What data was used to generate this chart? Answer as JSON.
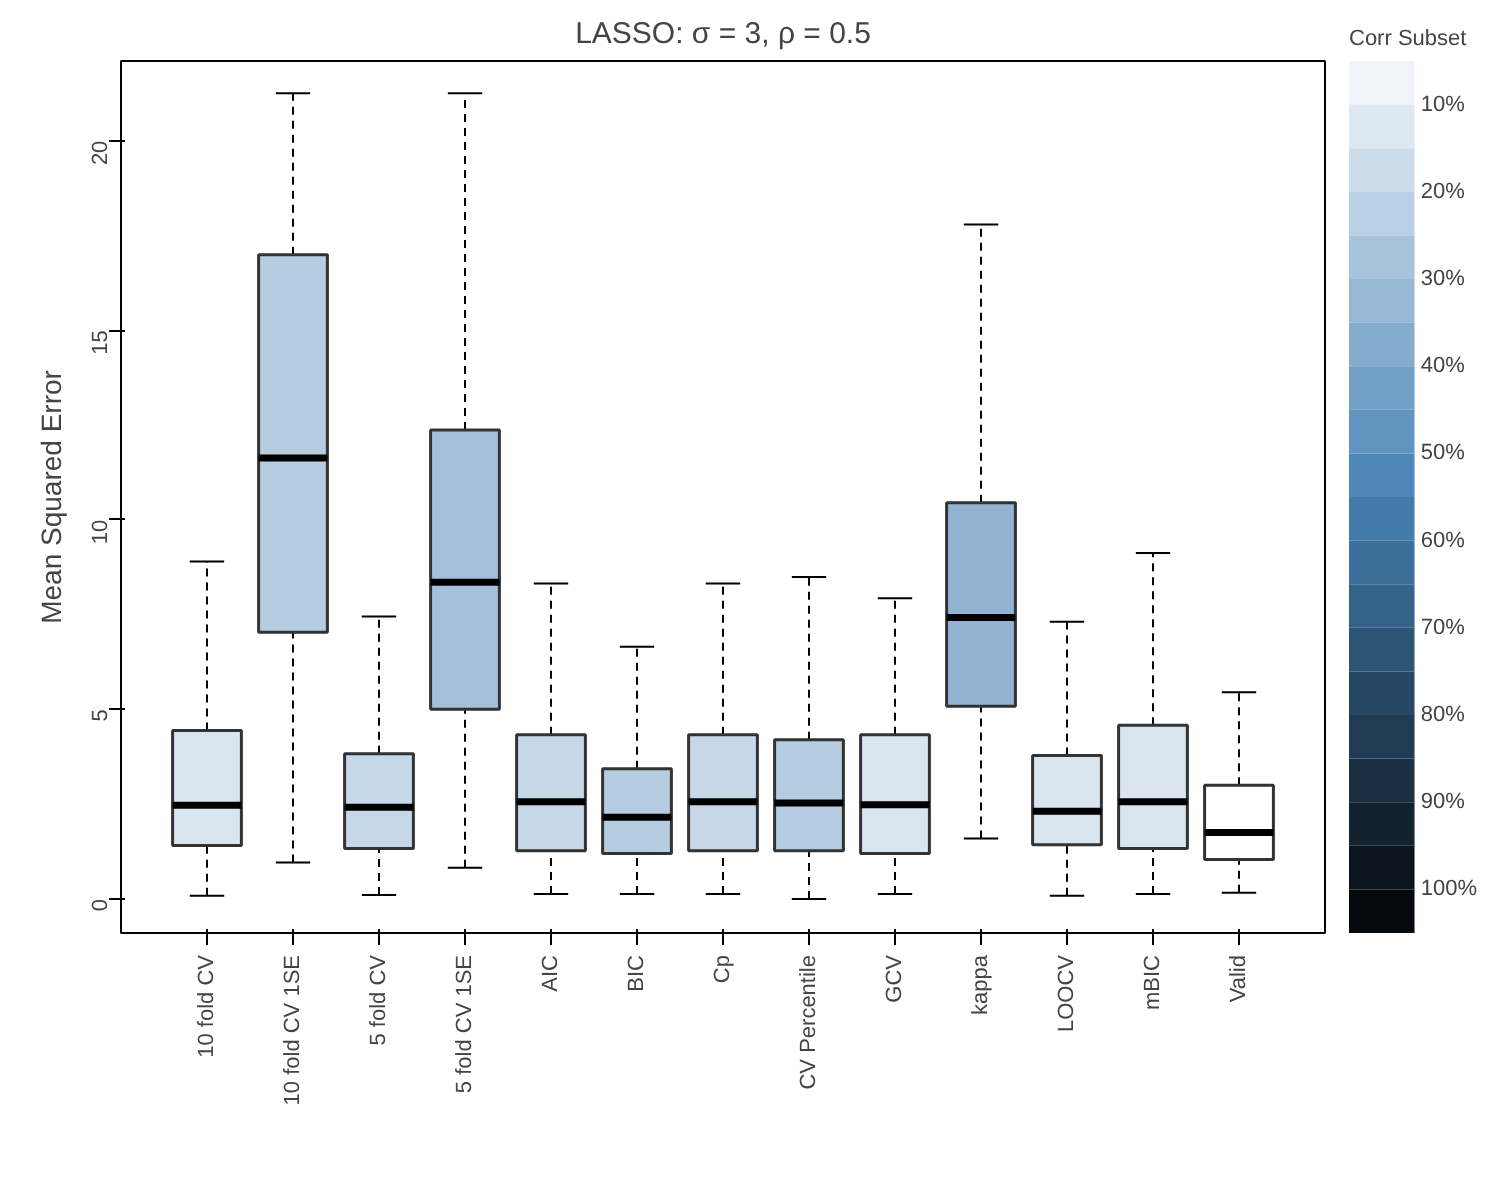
{
  "chart_data": {
    "type": "box",
    "title": "LASSO: σ = 3, ρ = 0.5",
    "ylabel": "Mean Squared Error",
    "categories": [
      "10 fold CV",
      "10 fold CV 1SE",
      "5 fold CV",
      "5 fold CV 1SE",
      "AIC",
      "BIC",
      "Cp",
      "CV Percentile",
      "GCV",
      "kappa",
      "LOOCV",
      "mBIC",
      "Valid"
    ],
    "boxes": [
      {
        "low": 0.08,
        "q1": 1.41,
        "median": 2.47,
        "q3": 4.44,
        "high": 8.9
      },
      {
        "low": 0.96,
        "q1": 7.03,
        "median": 11.63,
        "q3": 16.99,
        "high": 21.25
      },
      {
        "low": 0.1,
        "q1": 1.33,
        "median": 2.42,
        "q3": 3.83,
        "high": 7.45
      },
      {
        "low": 0.82,
        "q1": 5.0,
        "median": 8.35,
        "q3": 12.37,
        "high": 21.25
      },
      {
        "low": 0.13,
        "q1": 1.27,
        "median": 2.56,
        "q3": 4.33,
        "high": 8.32
      },
      {
        "low": 0.13,
        "q1": 1.2,
        "median": 2.15,
        "q3": 3.43,
        "high": 6.65
      },
      {
        "low": 0.13,
        "q1": 1.27,
        "median": 2.56,
        "q3": 4.33,
        "high": 8.32
      },
      {
        "low": 0.0,
        "q1": 1.27,
        "median": 2.53,
        "q3": 4.2,
        "high": 8.49
      },
      {
        "low": 0.13,
        "q1": 1.2,
        "median": 2.48,
        "q3": 4.33,
        "high": 7.93
      },
      {
        "low": 1.59,
        "q1": 5.08,
        "median": 7.42,
        "q3": 10.45,
        "high": 17.79
      },
      {
        "low": 0.08,
        "q1": 1.43,
        "median": 2.31,
        "q3": 3.78,
        "high": 7.31
      },
      {
        "low": 0.13,
        "q1": 1.33,
        "median": 2.56,
        "q3": 4.58,
        "high": 9.12
      },
      {
        "low": 0.16,
        "q1": 1.04,
        "median": 1.75,
        "q3": 3.0,
        "high": 5.45
      }
    ],
    "colors": [
      "#d9e5ef",
      "#b6cde1",
      "#c6d8e8",
      "#a2c0da",
      "#c6d8e8",
      "#b6cde1",
      "#c6d8e8",
      "#b6cde1",
      "#d9e5ef",
      "#92b4d2",
      "#d9e5ef",
      "#d9e5ef",
      "#ffffff"
    ],
    "ylim": [
      -0.9,
      22.1
    ],
    "yticks": [
      0,
      5,
      10,
      15,
      20
    ],
    "grid": false,
    "clabel": "Corr Subset",
    "clim": [
      5,
      105
    ],
    "cticks": [
      {
        "value": 10,
        "label": "10%"
      },
      {
        "value": 20,
        "label": "20%"
      },
      {
        "value": 30,
        "label": "30%"
      },
      {
        "value": 40,
        "label": "40%"
      },
      {
        "value": 50,
        "label": "50%"
      },
      {
        "value": 60,
        "label": "60%"
      },
      {
        "value": 70,
        "label": "70%"
      },
      {
        "value": 80,
        "label": "80%"
      },
      {
        "value": 90,
        "label": "90%"
      },
      {
        "value": 100,
        "label": "100%"
      }
    ]
  }
}
